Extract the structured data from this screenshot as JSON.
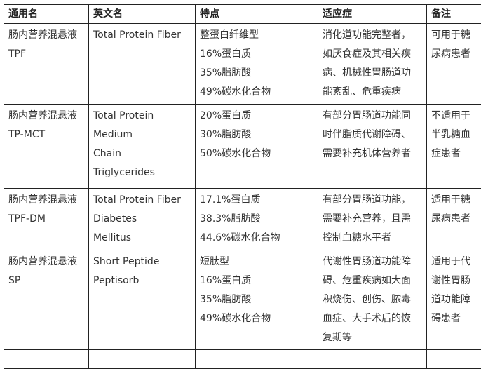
{
  "headers": [
    "通用名",
    "英文名",
    "特点",
    "适应症",
    "备注"
  ],
  "rows": [
    {
      "name": [
        "肠内营养混悬液",
        "TPF"
      ],
      "english": [
        "Total Protein Fiber"
      ],
      "features": [
        "整蛋白纤维型",
        "16%蛋白质",
        "35%脂肪酸",
        "49%碳水化合物"
      ],
      "indication": [
        "消化道功能完整者，",
        "如厌食症及其相关疾",
        "病、机械性胃肠道功",
        "能紊乱、危重疾病"
      ],
      "note": [
        "可用于糖",
        "尿病患者"
      ]
    },
    {
      "name": [
        "肠内营养混悬液",
        "TP-MCT"
      ],
      "english": [
        "Total Protein",
        "Medium",
        "Chain",
        "Triglycerides"
      ],
      "features": [
        "20%蛋白质",
        "30%脂肪酸",
        "50%碳水化合物"
      ],
      "indication": [
        "有部分胃肠道功能同",
        "时伴脂质代谢障碍、",
        "需要补充机体营养者"
      ],
      "note": [
        "不适用于",
        "半乳糖血",
        "症患者"
      ]
    },
    {
      "name": [
        "肠内营养混悬液",
        "TPF-DM"
      ],
      "english": [
        "Total Protein Fiber",
        "Diabetes",
        "Mellitus"
      ],
      "features": [
        "17.1%蛋白质",
        "38.3%脂肪酸",
        "44.6%碳水化合物"
      ],
      "indication": [
        "有部分胃肠道功能，",
        "需要补充营养，且需",
        "控制血糖水平者"
      ],
      "note": [
        "适用于糖",
        "尿病患者"
      ]
    },
    {
      "name": [
        "肠内营养混悬液",
        "SP"
      ],
      "english": [
        "Short Peptide",
        "Peptisorb"
      ],
      "features": [
        "短肽型",
        "16%蛋白质",
        "35%脂肪酸",
        "49%碳水化合物"
      ],
      "indication": [
        "代谢性胃肠道功能障",
        "碍、危重疾病如大面",
        "积烧伤、创伤、脓毒",
        "血症、大手术后的恢",
        "复期等"
      ],
      "note": [
        "适用于代",
        "谢性胃肠",
        "道功能障",
        "碍患者"
      ]
    }
  ]
}
